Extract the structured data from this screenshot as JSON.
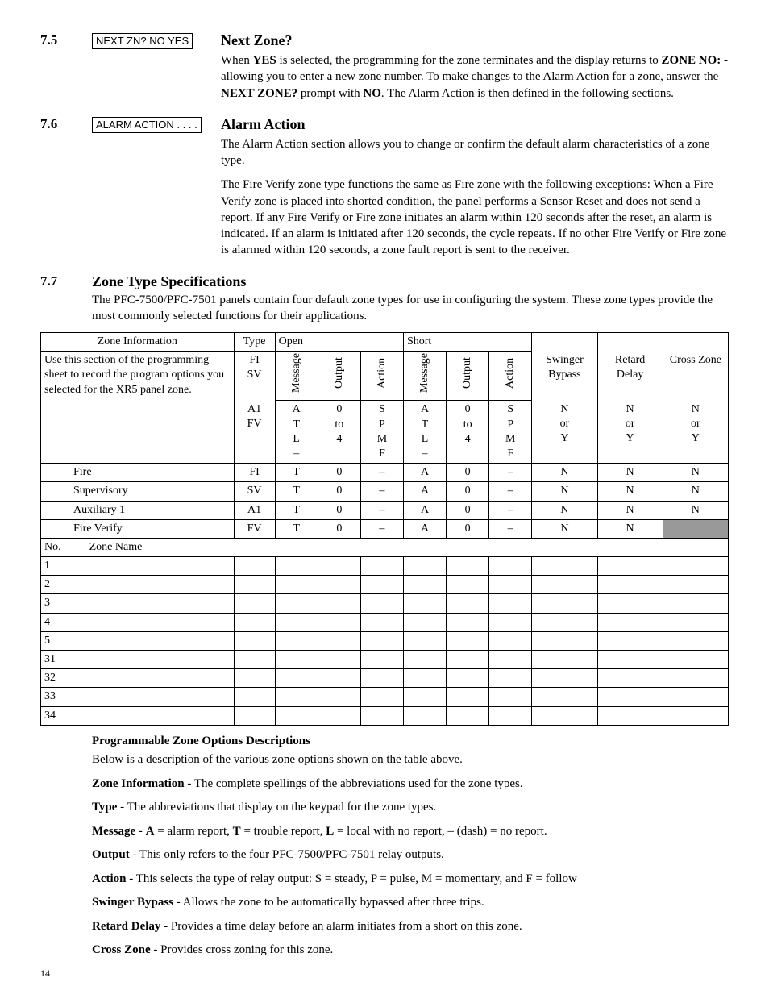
{
  "sections": {
    "s75": {
      "num": "7.5",
      "prompt": "NEXT ZN?    NO   YES",
      "heading": "Next Zone?",
      "para": "When <b>YES</b> is selected, the programming for the zone terminates and the display returns to <b>ZONE NO: -</b>  allowing you to enter a new zone number. To make changes to the Alarm Action for a zone, answer the <b>NEXT ZONE?</b> prompt with <b>NO</b>. The Alarm Action is then defined in the following sections."
    },
    "s76": {
      "num": "7.6",
      "prompt": "ALARM ACTION . . . .",
      "heading": "Alarm Action",
      "para1": "The Alarm Action section allows you to change or confirm the default alarm characteristics of a zone type.",
      "para2": "The Fire Verify zone type functions the same as Fire zone with the following exceptions: When a Fire Verify zone is placed into shorted condition, the panel performs a Sensor Reset and does not send a report. If any Fire Verify or Fire zone initiates an alarm within 120 seconds after the reset, an alarm is indicated. If an alarm is initiated after 120 seconds, the cycle repeats. If no other Fire Verify or Fire zone is alarmed within 120 seconds, a zone fault report is sent to the receiver."
    },
    "s77": {
      "num": "7.7",
      "heading": "Zone Type Specifications",
      "para": "The PFC-7500/PFC-7501 panels contain four default zone types for use in configuring the system. These zone types provide the most commonly selected functions for their applications."
    }
  },
  "table": {
    "top_headers": {
      "zi": "Zone Information",
      "type": "Type",
      "open": "Open",
      "short": "Short",
      "swinger": "Swinger Bypass",
      "retard": "Retard Delay",
      "cross": "Cross Zone"
    },
    "sub_headers": {
      "message": "Message",
      "output": "Output",
      "action": "Action"
    },
    "note": "Use this section of the programming sheet to record the program options you selected for the XR5 panel zone.",
    "type_codes": "FI\nSV\nA1\nFV",
    "msg_codes": "A\nT\nL\n–",
    "out_codes": "0\nto\n4",
    "act_codes": "S\nP\nM\nF",
    "ny": "N\nor\nY",
    "default_rows": [
      {
        "name": "Fire",
        "type": "FI",
        "om": "T",
        "oo": "0",
        "oa": "–",
        "sm": "A",
        "so": "0",
        "sa": "–",
        "sw": "N",
        "rd": "N",
        "cz": "N"
      },
      {
        "name": "Supervisory",
        "type": "SV",
        "om": "T",
        "oo": "0",
        "oa": "–",
        "sm": "A",
        "so": "0",
        "sa": "–",
        "sw": "N",
        "rd": "N",
        "cz": "N"
      },
      {
        "name": "Auxiliary 1",
        "type": "A1",
        "om": "T",
        "oo": "0",
        "oa": "–",
        "sm": "A",
        "so": "0",
        "sa": "–",
        "sw": "N",
        "rd": "N",
        "cz": "N"
      },
      {
        "name": "Fire Verify",
        "type": "FV",
        "om": "T",
        "oo": "0",
        "oa": "–",
        "sm": "A",
        "so": "0",
        "sa": "–",
        "sw": "N",
        "rd": "N",
        "cz": ""
      }
    ],
    "blank_header": {
      "no": "No.",
      "name": "Zone Name"
    },
    "blank_rows": [
      "1",
      "2",
      "3",
      "4",
      "5",
      "31",
      "32",
      "33",
      "34"
    ]
  },
  "descriptions": {
    "title": "Programmable Zone Options Descriptions",
    "intro": "Below is a description of the various zone options shown on the table above.",
    "items": [
      {
        "term": "Zone Information",
        "text": " - The complete spellings of the abbreviations used for the zone types."
      },
      {
        "term": "Type",
        "text": " - The abbreviations that display on the keypad for the zone types."
      },
      {
        "term": "Message",
        "text": " - <b>A</b> = alarm report, <b>T</b> = trouble report, <b>L</b> = local with no report, – (dash) = no report."
      },
      {
        "term": "Output",
        "text": " - This only refers to the four PFC-7500/PFC-7501 relay outputs."
      },
      {
        "term": "Action",
        "text": " - This selects the type of relay output:  S = steady, P = pulse, M = momentary, and F = follow"
      },
      {
        "term": "Swinger Bypass",
        "text": " - Allows the zone to be automatically bypassed after three trips."
      },
      {
        "term": "Retard Delay",
        "text": " - Provides a time delay before an alarm initiates from a short on this zone."
      },
      {
        "term": "Cross Zone",
        "text": " - Provides cross zoning for this zone."
      }
    ]
  },
  "page_number": "14"
}
